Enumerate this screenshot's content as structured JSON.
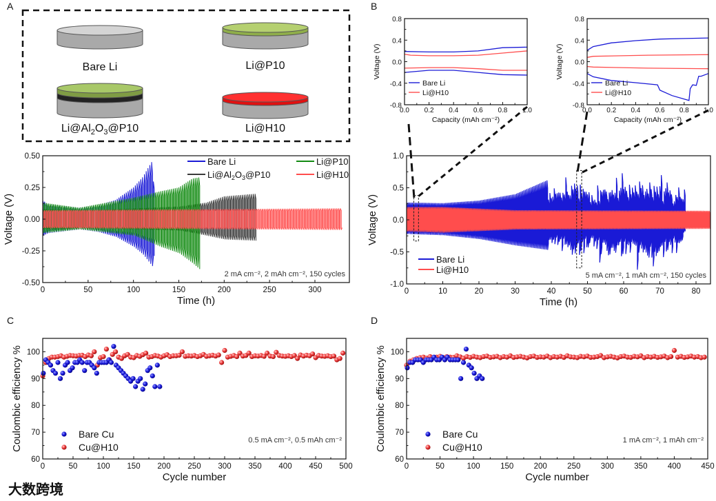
{
  "panel_labels": {
    "a": "A",
    "b": "B",
    "c": "C",
    "d": "D"
  },
  "schematic": {
    "bare_li": "Bare Li",
    "li_p10": "Li@P10",
    "li_al2o3_p10_parts": [
      "Li@Al",
      "2",
      "O",
      "3",
      "@P10"
    ],
    "li_h10": "Li@H10"
  },
  "watermark": "大数跨境",
  "colors": {
    "bare": "#1a1ad6",
    "p10": "#118a11",
    "al2o3": "#3a3a3a",
    "h10": "#ff4d4d",
    "cu_bare": "#1010d0",
    "cu_h10": "#f03030"
  },
  "chart_data": [
    {
      "id": "A",
      "type": "line",
      "xlabel": "Time (h)",
      "ylabel": "Voltage (V)",
      "xlim": [
        0,
        338
      ],
      "ylim": [
        -0.5,
        0.5
      ],
      "xticks": [
        "0",
        "50",
        "100",
        "150",
        "200",
        "250",
        "300"
      ],
      "yticks": [
        "-0.50",
        "-0.25",
        "0.00",
        "0.25",
        "0.50"
      ],
      "annotation": "2 mA cm⁻², 2 mAh cm⁻², 150 cycles",
      "cycle_period_h": 2,
      "series": [
        {
          "name": "Bare Li",
          "color_key": "bare",
          "t": [
            0,
            5,
            40,
            60,
            80,
            100,
            110,
            120,
            123
          ],
          "upper": [
            0.15,
            0.12,
            0.09,
            0.11,
            0.15,
            0.25,
            0.33,
            0.45,
            0.22
          ],
          "lower": [
            -0.13,
            -0.11,
            -0.08,
            -0.1,
            -0.14,
            -0.22,
            -0.28,
            -0.37,
            -0.25
          ]
        },
        {
          "name_parts": [
            "Li@Al",
            "2",
            "O",
            "3",
            "@P10"
          ],
          "color_key": "al2o3",
          "t": [
            0,
            50,
            150,
            180,
            200,
            235
          ],
          "upper": [
            0.08,
            0.07,
            0.1,
            0.13,
            0.18,
            0.2
          ],
          "lower": [
            -0.08,
            -0.07,
            -0.09,
            -0.13,
            -0.16,
            -0.17
          ]
        },
        {
          "name": "Li@P10",
          "color_key": "p10",
          "t": [
            0,
            40,
            100,
            130,
            150,
            165,
            173
          ],
          "upper": [
            0.13,
            0.09,
            0.17,
            0.22,
            0.25,
            0.32,
            0.33
          ],
          "lower": [
            -0.11,
            -0.08,
            -0.13,
            -0.22,
            -0.27,
            -0.35,
            -0.4
          ]
        },
        {
          "name": "Li@H10",
          "color_key": "h10",
          "t": [
            0,
            330
          ],
          "upper": [
            0.07,
            0.085
          ],
          "lower": [
            -0.07,
            -0.085
          ]
        }
      ]
    },
    {
      "id": "B",
      "type": "line",
      "xlabel": "Time (h)",
      "ylabel": "Voltage (V)",
      "xlim": [
        0,
        84
      ],
      "ylim": [
        -1.0,
        1.0
      ],
      "xticks": [
        "0",
        "10",
        "20",
        "30",
        "40",
        "50",
        "60",
        "70",
        "80"
      ],
      "yticks": [
        "-1.0",
        "-0.5",
        "0.0",
        "0.5",
        "1.0"
      ],
      "annotation": "5 mA cm⁻², 1 mAh cm⁻², 150 cycles",
      "cycle_period_h": 0.4,
      "series": [
        {
          "name": "Bare Li",
          "color_key": "bare",
          "t": [
            0,
            10,
            20,
            30,
            39,
            40,
            47,
            50,
            60,
            70,
            77
          ],
          "upper": [
            0.27,
            0.26,
            0.3,
            0.4,
            0.62,
            0.38,
            0.6,
            0.45,
            0.55,
            0.55,
            0.35
          ],
          "lower": [
            -0.22,
            -0.24,
            -0.3,
            -0.4,
            -0.47,
            -0.42,
            -0.62,
            -0.5,
            -0.6,
            -0.6,
            -0.3
          ]
        },
        {
          "name": "Li@H10",
          "color_key": "h10",
          "t": [
            0,
            10,
            30,
            84
          ],
          "upper": [
            0.2,
            0.2,
            0.15,
            0.14
          ],
          "lower": [
            -0.18,
            -0.2,
            -0.15,
            -0.14
          ]
        }
      ]
    },
    {
      "id": "B-inset-1",
      "type": "line",
      "xlabel": "Capacity (mAh cm⁻²)",
      "ylabel": "Voltage (V)",
      "xlim": [
        0,
        1
      ],
      "ylim": [
        -0.8,
        0.8
      ],
      "xticks": [
        "0.0",
        "0.2",
        "0.4",
        "0.6",
        "0.8",
        "1.0"
      ],
      "yticks": [
        "-0.8",
        "-0.4",
        "0.0",
        "0.4",
        "0.8"
      ],
      "series": [
        {
          "name": "Bare Li",
          "color_key": "bare",
          "curves": [
            {
              "x": [
                0,
                0.2,
                0.4,
                0.6,
                0.8,
                1.0
              ],
              "y": [
                0.19,
                0.18,
                0.18,
                0.2,
                0.26,
                0.27
              ]
            },
            {
              "x": [
                0,
                0.2,
                0.4,
                0.6,
                0.8,
                1.0
              ],
              "y": [
                -0.2,
                -0.16,
                -0.16,
                -0.2,
                -0.24,
                -0.25
              ]
            }
          ]
        },
        {
          "name": "Li@H10",
          "color_key": "h10",
          "curves": [
            {
              "x": [
                0,
                0.05,
                0.2,
                0.4,
                0.6,
                0.8,
                1.0
              ],
              "y": [
                0.14,
                0.12,
                0.11,
                0.11,
                0.12,
                0.16,
                0.2
              ]
            },
            {
              "x": [
                0,
                0.2,
                0.4,
                0.6,
                0.8,
                1.0
              ],
              "y": [
                -0.12,
                -0.11,
                -0.11,
                -0.13,
                -0.16,
                -0.16
              ]
            }
          ]
        }
      ]
    },
    {
      "id": "B-inset-2",
      "type": "line",
      "xlabel": "Capacity (mAh cm⁻²)",
      "ylabel": "Voltage (V)",
      "xlim": [
        0,
        1
      ],
      "ylim": [
        -0.8,
        0.8
      ],
      "xticks": [
        "0.0",
        "0.2",
        "0.4",
        "0.6",
        "0.8",
        "1.0"
      ],
      "yticks": [
        "-0.8",
        "-0.4",
        "0.0",
        "0.4",
        "0.8"
      ],
      "series": [
        {
          "name": "Bare Li",
          "color_key": "bare",
          "curves": [
            {
              "x": [
                0,
                0.05,
                0.2,
                0.4,
                0.6,
                0.8,
                1.0
              ],
              "y": [
                0.21,
                0.28,
                0.35,
                0.39,
                0.42,
                0.43,
                0.44
              ]
            },
            {
              "x": [
                0,
                0.05,
                0.2,
                0.4,
                0.58,
                0.6,
                0.7,
                0.84,
                0.85,
                0.87,
                0.9,
                0.92,
                0.94,
                1.0
              ],
              "y": [
                -0.22,
                -0.28,
                -0.35,
                -0.39,
                -0.43,
                -0.53,
                -0.63,
                -0.72,
                -0.5,
                -0.43,
                -0.44,
                -0.27,
                -0.27,
                -0.22
              ]
            }
          ]
        },
        {
          "name": "Li@H10",
          "color_key": "h10",
          "curves": [
            {
              "x": [
                0,
                0.05,
                0.5,
                1.0
              ],
              "y": [
                0.08,
                0.1,
                0.12,
                0.13
              ]
            },
            {
              "x": [
                0,
                0.05,
                0.5,
                1.0
              ],
              "y": [
                -0.09,
                -0.1,
                -0.12,
                -0.13
              ]
            }
          ]
        }
      ]
    },
    {
      "id": "C",
      "type": "scatter",
      "xlabel": "Cycle number",
      "ylabel": "Coulombic efficiency %",
      "xlim": [
        0,
        500
      ],
      "ylim": [
        60,
        105
      ],
      "xticks": [
        "0",
        "50",
        "100",
        "150",
        "200",
        "250",
        "300",
        "350",
        "400",
        "450",
        "500"
      ],
      "yticks": [
        "60",
        "70",
        "80",
        "90",
        "100"
      ],
      "annotation": "0.5 mA cm⁻², 0.5 mAh cm⁻²",
      "series": [
        {
          "name": "Bare Cu",
          "color_key": "cu_bare",
          "x_start": 1,
          "x_step": 4,
          "values": [
            92,
            97,
            96,
            95,
            93,
            92,
            96,
            90,
            92,
            95,
            96,
            93,
            94,
            96,
            96,
            97,
            96,
            93,
            96,
            96,
            95,
            94,
            92,
            96,
            96,
            96,
            96,
            97,
            96,
            102,
            95,
            94,
            93,
            92,
            91,
            90,
            89,
            90,
            87,
            89,
            90,
            86,
            88,
            93,
            94,
            91,
            87,
            95,
            87
          ]
        },
        {
          "name": "Cu@H10",
          "color_key": "cu_h10",
          "x_start": 0,
          "x_step": 5,
          "values": [
            91,
            96,
            97.5,
            98,
            98,
            98.2,
            98.5,
            98,
            98.3,
            98.6,
            98.5,
            98.4,
            98.6,
            98.7,
            98.2,
            98.8,
            98.5,
            100,
            95,
            97.8,
            98.2,
            101,
            97,
            99,
            100,
            98,
            97.5,
            98.5,
            99,
            98,
            97.8,
            98.6,
            98.3,
            98.9,
            99.5,
            98,
            98.2,
            98.6,
            98.4,
            98,
            98.5,
            98.9,
            98.2,
            98.5,
            98.5,
            98.7,
            100,
            98.3,
            98.5,
            98.4,
            98.6,
            98.2,
            98.5,
            99,
            98.3,
            98.5,
            98.7,
            98.4,
            98.8,
            96,
            100.5,
            98,
            98.3,
            98.6,
            98.2,
            99.5,
            98.4,
            98.6,
            99.5,
            98.2,
            98.5,
            98.4,
            98.6,
            98.3,
            99.5,
            98.4,
            98.2,
            99.8,
            98.6,
            98.4,
            98.3,
            98.5,
            98.2,
            98.6,
            97.5,
            98.8,
            98.4,
            98.7,
            98.5,
            99.2,
            97.8,
            98.6,
            98.4,
            98.3,
            98.5,
            98.2,
            98.4,
            97,
            97.5,
            99.5
          ]
        }
      ]
    },
    {
      "id": "D",
      "type": "scatter",
      "xlabel": "Cycle number",
      "ylabel": "Coulombic efficiency %",
      "xlim": [
        0,
        450
      ],
      "ylim": [
        60,
        105
      ],
      "xticks": [
        "0",
        "50",
        "100",
        "150",
        "200",
        "250",
        "300",
        "350",
        "400",
        "450"
      ],
      "yticks": [
        "60",
        "70",
        "80",
        "90",
        "100"
      ],
      "annotation": "1 mA cm⁻², 1 mAh cm⁻²",
      "series": [
        {
          "name": "Bare Cu",
          "color_key": "cu_bare",
          "x_start": 1,
          "x_step": 4,
          "values": [
            94,
            96,
            96,
            97,
            97,
            97,
            96,
            97,
            97,
            97,
            98,
            97,
            97,
            98,
            97,
            98,
            97,
            97,
            97,
            97,
            90,
            96,
            101,
            95,
            94,
            92,
            90,
            91,
            90
          ]
        },
        {
          "name": "Cu@H10",
          "color_key": "cu_h10",
          "x_start": 0,
          "x_step": 5,
          "values": [
            95,
            96.5,
            97,
            97.5,
            97.8,
            98,
            97.6,
            98.2,
            97.9,
            98,
            98.3,
            97.8,
            98.2,
            98,
            97.9,
            98.5,
            98.1,
            97.6,
            98.2,
            97.9,
            98.3,
            98,
            97.8,
            98.2,
            98.4,
            97.9,
            98.1,
            98.3,
            97.8,
            98.2,
            98,
            98.5,
            97.9,
            98.1,
            98.3,
            98,
            97.7,
            98.2,
            98.4,
            97.9,
            98.1,
            98,
            98.4,
            97.8,
            98.2,
            98,
            98.3,
            97.9,
            98.5,
            98.1,
            98,
            97.8,
            98.3,
            98.1,
            98.4,
            97.9,
            98,
            98.2,
            98.6,
            97.8,
            98.1,
            98.3,
            98,
            97.7,
            98.2,
            98.4,
            98,
            97.9,
            98.3,
            98.1,
            98.5,
            97.8,
            98.2,
            98,
            98.3,
            97.9,
            98.1,
            98.4,
            97.8,
            98.2,
            100.5,
            98,
            98.3,
            97.9,
            98.1,
            98.4,
            98,
            98.2,
            97.8,
            98
          ]
        }
      ]
    }
  ]
}
